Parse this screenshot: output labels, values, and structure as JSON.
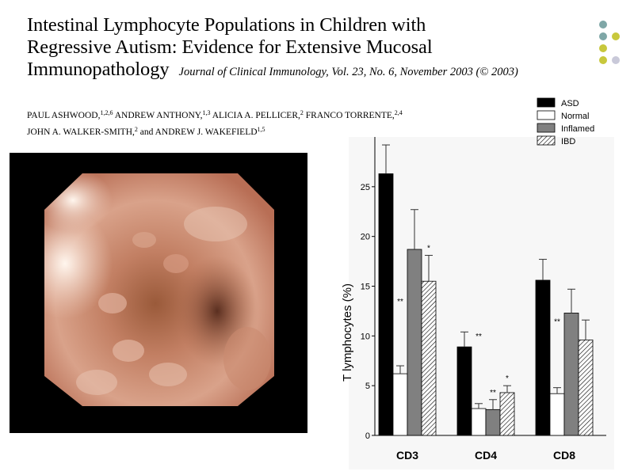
{
  "title": {
    "line1": "Intestinal Lymphocyte Populations in Children with",
    "line2": "Regressive Autism: Evidence for Extensive Mucosal",
    "line3": "Immunopathology",
    "journal": "Journal of Clinical Immunology, Vol. 23, No. 6, November 2003 (© 2003)"
  },
  "authors": [
    {
      "name": "PAUL ASHWOOD,",
      "sup": "1,2,6"
    },
    {
      "name": "ANDREW ANTHONY,",
      "sup": "1,3"
    },
    {
      "name": "ALICIA A. PELLICER,",
      "sup": "2"
    },
    {
      "name": "FRANCO TORRENTE,",
      "sup": "2,4"
    },
    {
      "name": "JOHN A. WALKER-SMITH,",
      "sup": "2"
    },
    {
      "name": "and ANDREW J. WAKEFIELD",
      "sup": "1,5"
    }
  ],
  "decor_colors": [
    "#7fa7a7",
    "#c8c83c",
    "#c9c9d9"
  ],
  "photo": {
    "description_icon": "endoscopy-image"
  },
  "chart_data": {
    "type": "bar",
    "categories": [
      "CD3",
      "CD4",
      "CD8"
    ],
    "ylabel": "T lymphocytes (%)",
    "ylim": [
      0,
      30
    ],
    "yticks": [
      0,
      5,
      10,
      15,
      20,
      25
    ],
    "legend_position": "top-right",
    "series": [
      {
        "name": "ASD",
        "fill": "solid-black",
        "values": [
          26.3,
          8.9,
          15.6
        ],
        "errors": [
          2.9,
          1.5,
          2.1
        ],
        "marks": [
          "",
          "",
          ""
        ]
      },
      {
        "name": "Normal",
        "fill": "white",
        "values": [
          6.2,
          2.7,
          4.2
        ],
        "errors": [
          0.8,
          0.5,
          0.6
        ],
        "marks": [
          "**",
          "**",
          "**"
        ]
      },
      {
        "name": "Inflamed",
        "fill": "gray",
        "values": [
          18.7,
          2.6,
          12.3
        ],
        "errors": [
          4.0,
          1.0,
          2.4
        ],
        "marks": [
          "",
          "**",
          ""
        ]
      },
      {
        "name": "IBD",
        "fill": "hatched",
        "values": [
          15.5,
          4.3,
          9.6
        ],
        "errors": [
          2.6,
          0.7,
          2.0
        ],
        "marks": [
          "*",
          "*",
          ""
        ]
      }
    ]
  }
}
